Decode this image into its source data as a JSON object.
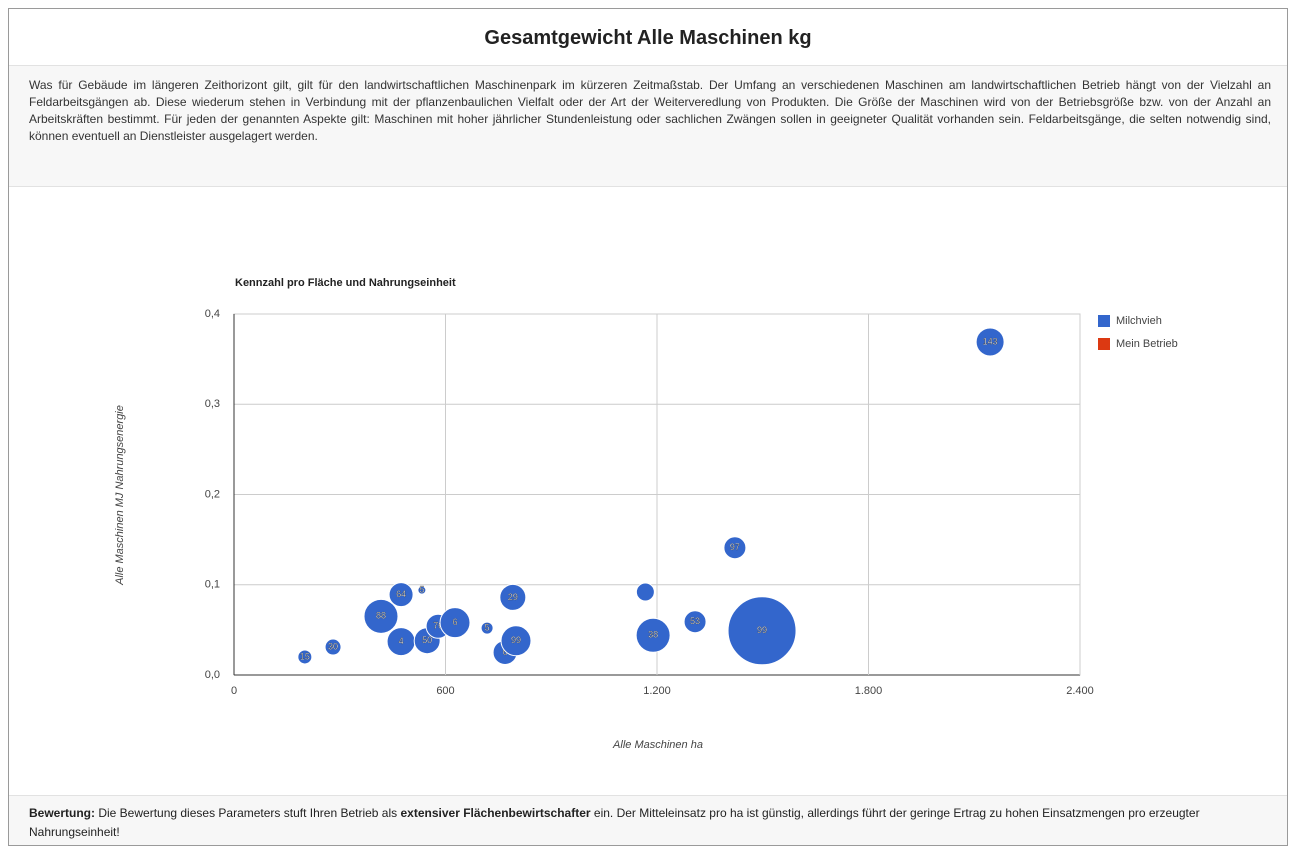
{
  "header": {
    "title": "Gesamtgewicht Alle Maschinen kg"
  },
  "description": "Was für Gebäude im längeren Zeithorizont gilt, gilt für den landwirtschaftlichen Maschinenpark im kürzeren Zeitmaßstab. Der Umfang an verschiedenen Maschinen am landwirtschaftlichen Betrieb hängt von der Vielzahl an Feldarbeitsgängen ab. Diese wiederum stehen in Verbindung mit der pflanzenbaulichen Vielfalt oder der Art der Weiterveredlung von Produkten. Die Größe der Maschinen wird von der Betriebsgröße bzw. von der Anzahl an Arbeitskräften bestimmt. Für jeden der genannten Aspekte gilt: Maschinen mit hoher jährlicher Stundenleistung oder sachlichen Zwängen sollen in geeigneter Qualität vorhanden sein. Feldarbeitsgänge, die selten notwendig sind, können eventuell an Dienstleister ausgelagert werden.",
  "chart_data": {
    "type": "bubble",
    "title": "Kennzahl pro Fläche und Nahrungseinheit",
    "x_label": "Alle Maschinen ha",
    "y_label": "Alle Maschinen MJ Nahrungsenergie",
    "xlim": [
      0,
      2400
    ],
    "xticks": [
      0,
      600,
      {
        "value": 1200,
        "label": "1.200"
      },
      {
        "value": 1800,
        "label": "1.800"
      },
      {
        "value": 2400,
        "label": "2.400"
      }
    ],
    "ylim": [
      0,
      0.4
    ],
    "yticks": [
      {
        "value": 0,
        "label": "0,0"
      },
      {
        "value": 0.1,
        "label": "0,1"
      },
      {
        "value": 0.2,
        "label": "0,2"
      },
      {
        "value": 0.3,
        "label": "0,3"
      },
      {
        "value": 0.4,
        "label": "0,4"
      }
    ],
    "grid": true,
    "legend": "right",
    "series": [
      {
        "name": "Milchvieh",
        "color": "#3366cc",
        "x": [
          201,
          281,
          417,
          474,
          533,
          474,
          548,
          579,
          627,
          718,
          791,
          769,
          800,
          1167,
          1189,
          1308,
          1421,
          1498,
          2145
        ],
        "y": [
          0.02,
          0.031,
          0.065,
          0.089,
          0.094,
          0.037,
          0.038,
          0.054,
          0.058,
          0.052,
          0.086,
          0.025,
          0.038,
          0.092,
          0.044,
          0.059,
          0.141,
          0.049,
          0.369
        ],
        "size": [
          49,
          64,
          289,
          144,
          16,
          196,
          169,
          144,
          225,
          36,
          169,
          144,
          225,
          81,
          289,
          121,
          121,
          1156,
          196
        ],
        "labels": [
          "15",
          "30",
          "88",
          "64",
          "5",
          "4",
          "50",
          "76",
          "6",
          "5",
          "29",
          "6",
          "99",
          null,
          "38",
          "53",
          "97",
          "99",
          "143"
        ]
      },
      {
        "name": "Mein Betrieb",
        "color": "#dc3912",
        "x": [],
        "y": [],
        "size": [],
        "labels": []
      }
    ]
  },
  "rating": {
    "label": "Bewertung:",
    "text1": " Die Bewertung dieses Parameters stuft Ihren Betrieb als ",
    "highlight": "extensiver Flächenbewirtschafter",
    "text2": " ein. Der Mitteleinsatz pro ha ist günstig, allerdings führt der geringe Ertrag zu hohen Einsatzmengen pro erzeugter Nahrungseinheit!"
  }
}
